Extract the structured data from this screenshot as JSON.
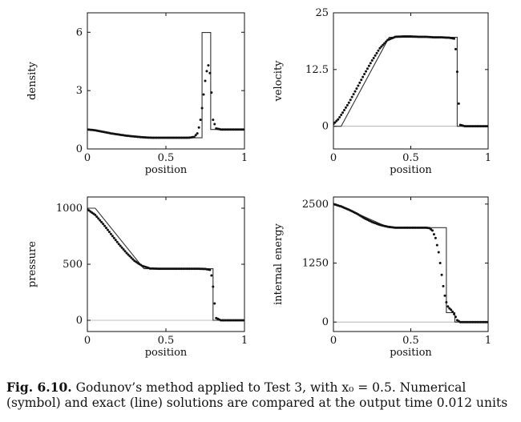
{
  "caption": {
    "label": "Fig. 6.10.",
    "text": "Godunov’s method applied to Test 3, with x₀ = 0.5. Numerical (symbol) and exact (line) solutions are compared at the output time 0.012 units"
  },
  "chart_data": [
    {
      "type": "line",
      "xlabel": "position",
      "ylabel": "density",
      "xlim": [
        0,
        1
      ],
      "ylim": [
        0,
        7
      ],
      "xticks": [
        0,
        0.5,
        1
      ],
      "xtick_labels": [
        "0",
        "0.5",
        "1"
      ],
      "yticks": [
        0,
        3,
        6
      ],
      "ytick_labels": [
        "0",
        "3",
        "6"
      ],
      "series": [
        {
          "style": "line",
          "x": [
            0,
            0.05,
            0.1,
            0.2,
            0.3,
            0.4,
            0.5,
            0.6,
            0.7,
            0.73,
            0.73,
            0.74,
            0.74,
            0.785,
            0.785,
            0.8,
            1
          ],
          "y": [
            1.0,
            0.95,
            0.88,
            0.75,
            0.64,
            0.58,
            0.575,
            0.575,
            0.575,
            0.575,
            5.99,
            5.99,
            5.99,
            5.99,
            1.0,
            1.0,
            1.0
          ]
        },
        {
          "style": "symbol",
          "x": [
            0,
            0.05,
            0.1,
            0.15,
            0.2,
            0.25,
            0.3,
            0.35,
            0.4,
            0.45,
            0.5,
            0.55,
            0.6,
            0.65,
            0.68,
            0.7,
            0.71,
            0.72,
            0.73,
            0.74,
            0.75,
            0.76,
            0.77,
            0.78,
            0.79,
            0.8,
            0.82,
            0.85,
            0.9,
            0.95,
            1.0
          ],
          "y": [
            1.0,
            0.96,
            0.88,
            0.8,
            0.74,
            0.68,
            0.64,
            0.6,
            0.58,
            0.575,
            0.575,
            0.575,
            0.575,
            0.58,
            0.62,
            0.8,
            1.1,
            1.5,
            2.1,
            2.8,
            3.5,
            4.0,
            4.3,
            3.9,
            2.9,
            1.5,
            1.05,
            1.0,
            1.0,
            1.0,
            1.0
          ]
        }
      ]
    },
    {
      "type": "line",
      "xlabel": "position",
      "ylabel": "velocity",
      "xlim": [
        0,
        1
      ],
      "ylim": [
        -5,
        25
      ],
      "xticks": [
        0,
        0.5,
        1
      ],
      "xtick_labels": [
        "0",
        "0.5",
        "1"
      ],
      "yticks": [
        0,
        12.5,
        25
      ],
      "ytick_labels": [
        "0",
        "12.5",
        "25"
      ],
      "zero_line": true,
      "series": [
        {
          "style": "line",
          "x": [
            0,
            0.05,
            0.36,
            0.8,
            0.8,
            1
          ],
          "y": [
            0,
            0,
            19.6,
            19.6,
            0,
            0
          ]
        },
        {
          "style": "symbol",
          "x": [
            0,
            0.03,
            0.06,
            0.1,
            0.15,
            0.2,
            0.25,
            0.3,
            0.35,
            0.4,
            0.45,
            0.5,
            0.55,
            0.6,
            0.65,
            0.7,
            0.75,
            0.78,
            0.79,
            0.8,
            0.81,
            0.82,
            0.85,
            0.9,
            0.95,
            1.0
          ],
          "y": [
            0.5,
            1.5,
            3.0,
            5.2,
            8.3,
            11.5,
            14.5,
            17.2,
            19.0,
            19.7,
            19.8,
            19.8,
            19.7,
            19.7,
            19.6,
            19.6,
            19.5,
            19.3,
            17.0,
            12.0,
            5.0,
            0.3,
            0,
            0,
            0,
            0
          ]
        }
      ]
    },
    {
      "type": "line",
      "xlabel": "position",
      "ylabel": "pressure",
      "xlim": [
        0,
        1
      ],
      "ylim": [
        -100,
        1100
      ],
      "xticks": [
        0,
        0.5,
        1
      ],
      "xtick_labels": [
        "0",
        "0.5",
        "1"
      ],
      "yticks": [
        0,
        500,
        1000
      ],
      "ytick_labels": [
        "0",
        "500",
        "1000"
      ],
      "zero_line": true,
      "series": [
        {
          "style": "line",
          "x": [
            0,
            0.05,
            0.36,
            0.8,
            0.8,
            1
          ],
          "y": [
            1000,
            1000,
            460,
            460,
            0,
            0
          ]
        },
        {
          "style": "symbol",
          "x": [
            0,
            0.05,
            0.1,
            0.15,
            0.2,
            0.25,
            0.3,
            0.35,
            0.4,
            0.45,
            0.5,
            0.55,
            0.6,
            0.65,
            0.7,
            0.75,
            0.78,
            0.79,
            0.8,
            0.81,
            0.82,
            0.85,
            0.9,
            0.95,
            1.0
          ],
          "y": [
            990,
            940,
            860,
            770,
            680,
            600,
            530,
            485,
            462,
            460,
            460,
            460,
            460,
            460,
            460,
            458,
            450,
            400,
            300,
            150,
            20,
            0,
            0,
            0,
            0
          ]
        }
      ]
    },
    {
      "type": "line",
      "xlabel": "position",
      "ylabel": "internal energy",
      "xlim": [
        0,
        1
      ],
      "ylim": [
        -200,
        2650
      ],
      "xticks": [
        0,
        0.5,
        1
      ],
      "xtick_labels": [
        "0",
        "0.5",
        "1"
      ],
      "yticks": [
        0,
        1250,
        2500
      ],
      "ytick_labels": [
        "0",
        "1250",
        "2500"
      ],
      "zero_line": true,
      "series": [
        {
          "style": "line",
          "x": [
            0,
            0.05,
            0.36,
            0.73,
            0.73,
            0.785,
            0.785,
            1
          ],
          "y": [
            2500,
            2450,
            2000,
            2000,
            200,
            200,
            0,
            0
          ]
        },
        {
          "style": "symbol",
          "x": [
            0,
            0.05,
            0.1,
            0.15,
            0.2,
            0.25,
            0.3,
            0.35,
            0.4,
            0.45,
            0.5,
            0.55,
            0.6,
            0.62,
            0.64,
            0.66,
            0.68,
            0.69,
            0.7,
            0.71,
            0.72,
            0.73,
            0.74,
            0.75,
            0.76,
            0.77,
            0.78,
            0.79,
            0.8,
            0.82,
            0.85,
            0.9,
            0.95,
            1.0
          ],
          "y": [
            2500,
            2450,
            2380,
            2300,
            2200,
            2120,
            2060,
            2020,
            2000,
            2000,
            2000,
            2000,
            2000,
            1990,
            1940,
            1780,
            1480,
            1250,
            1000,
            760,
            560,
            420,
            330,
            290,
            260,
            220,
            170,
            110,
            40,
            0,
            0,
            0,
            0,
            0
          ]
        }
      ]
    }
  ]
}
